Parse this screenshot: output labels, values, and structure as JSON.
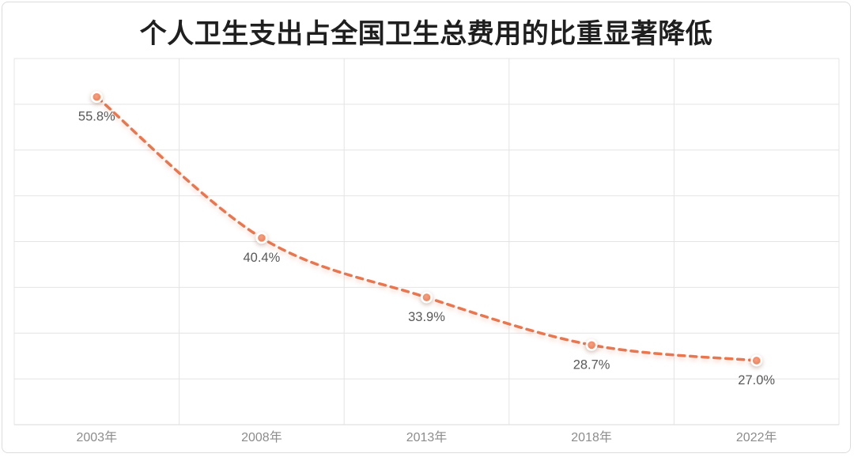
{
  "title": "个人卫生支出占全国卫生总费用的比重显著降低",
  "colors": {
    "line": "#E8764E",
    "marker_center": "#F5A083",
    "marker_edge": "#EC7A4F",
    "marker_ring": "#FFFFFF",
    "grid": "#E4E4E4",
    "axis_line": "#D9D9D9",
    "data_label": "#595959",
    "axis_label": "#8C8C8C",
    "title_color": "#1F1F1F",
    "card_border": "#DCDCDC"
  },
  "chart_data": {
    "type": "line",
    "title": "个人卫生支出占全国卫生总费用的比重显著降低",
    "categories": [
      "2003年",
      "2008年",
      "2013年",
      "2018年",
      "2022年"
    ],
    "values": [
      55.8,
      40.4,
      33.9,
      28.7,
      27.0
    ],
    "data_labels": [
      "55.8%",
      "40.4%",
      "33.9%",
      "28.7%",
      "27.0%"
    ],
    "xlabel": "",
    "ylabel": "",
    "ylim": [
      20,
      60
    ],
    "grid_step": 5,
    "grid": true,
    "legend_position": "none",
    "line_style": "dashed",
    "smooth": true,
    "data_label_position": "below"
  }
}
